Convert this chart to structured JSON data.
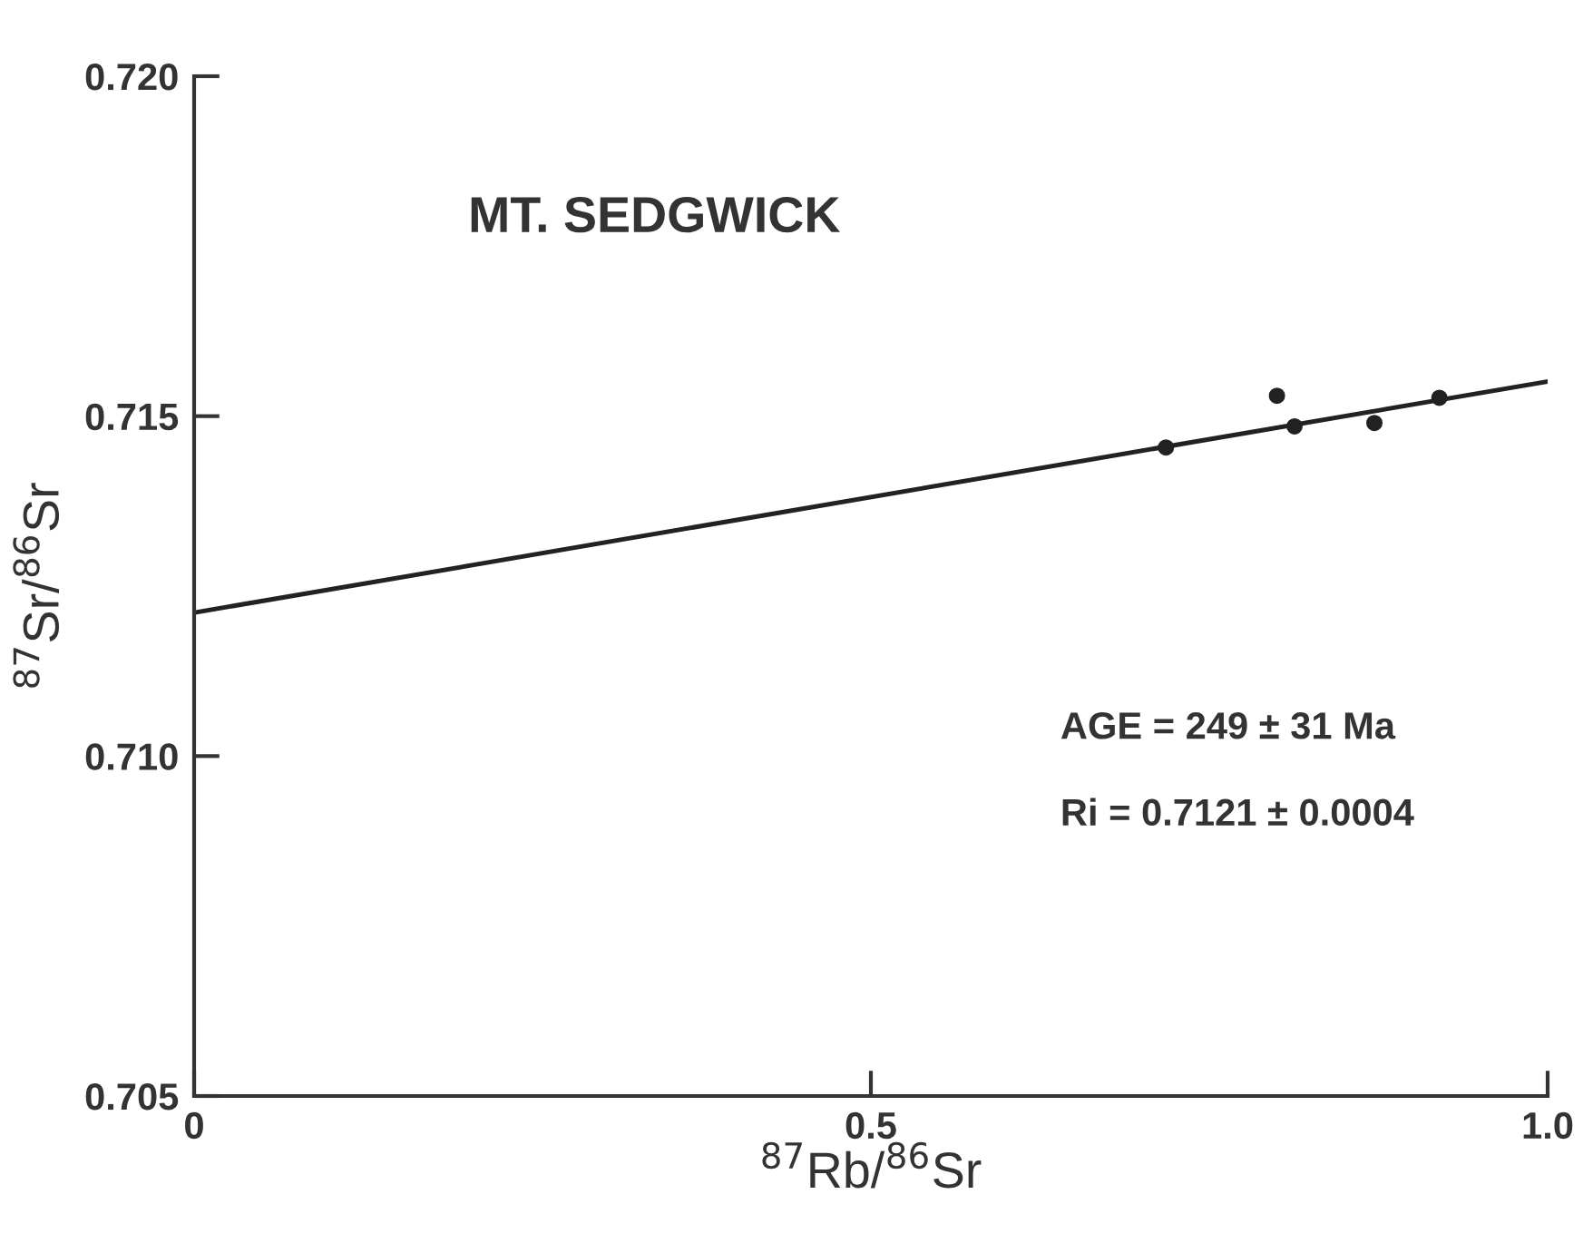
{
  "chart_data": {
    "type": "scatter",
    "title": "MT. SEDGWICK",
    "xlabel": "$^{87}$Rb/$^{86}$Sr",
    "ylabel": "$^{87}$Sr/$^{86}$Sr",
    "series": [
      {
        "color": "#222222",
        "marker": "circle",
        "x": [
          0.718,
          0.8,
          0.813,
          0.872,
          0.92
        ],
        "values": [
          0.71454,
          0.7153,
          0.71485,
          0.7149,
          0.71527
        ]
      },
      {
        "type": "line",
        "marker": "none",
        "color": "#222222",
        "x": [
          0,
          1
        ],
        "values": [
          0.71211,
          0.71551
        ]
      }
    ],
    "grid": false,
    "legend": false,
    "xlim": [
      0,
      1
    ],
    "xticks": [
      0,
      0.5,
      {
        "value": 1,
        "label": "1.0"
      }
    ],
    "ylim": [
      0.705,
      0.72
    ],
    "yticks": [
      {
        "value": 0.705,
        "label": "0.705"
      },
      {
        "value": 0.71,
        "label": "0.710"
      },
      {
        "value": 0.715,
        "label": "0.715"
      },
      {
        "value": 0.72,
        "label": "0.720"
      }
    ],
    "annotations": [
      "AGE = 249 ± 31 Ma",
      "Ri = 0.7121 ± 0.0004"
    ]
  }
}
